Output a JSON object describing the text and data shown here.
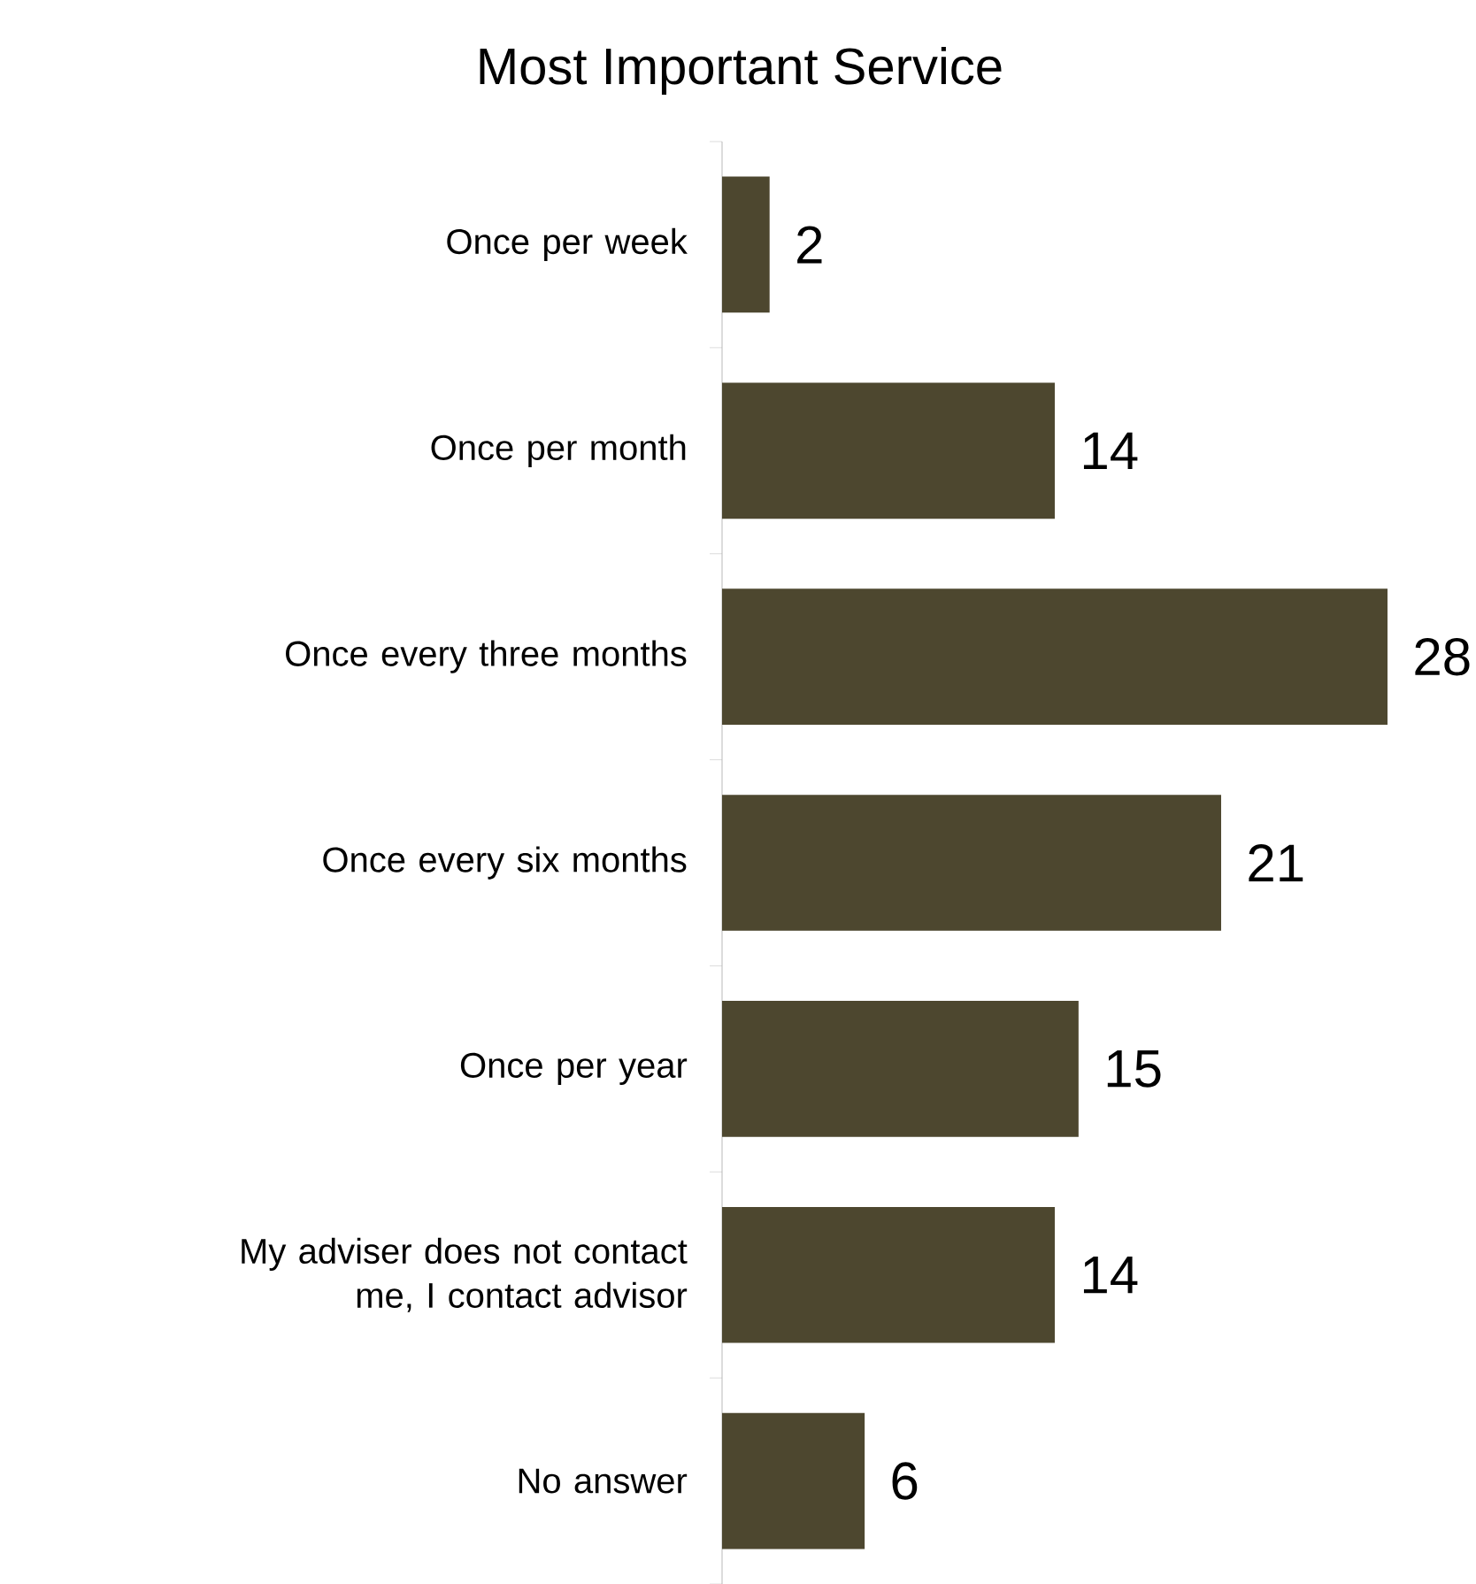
{
  "chart_data": {
    "type": "bar",
    "orientation": "horizontal",
    "title": "Most Important Service",
    "categories": [
      "Once per week",
      "Once per month",
      "Once every three months",
      "Once every six months",
      "Once per year",
      "My adviser does not contact me, I contact advisor",
      "No answer"
    ],
    "values": [
      2,
      14,
      28,
      21,
      15,
      14,
      6
    ],
    "color": "#4d472f",
    "data_labels": true
  }
}
